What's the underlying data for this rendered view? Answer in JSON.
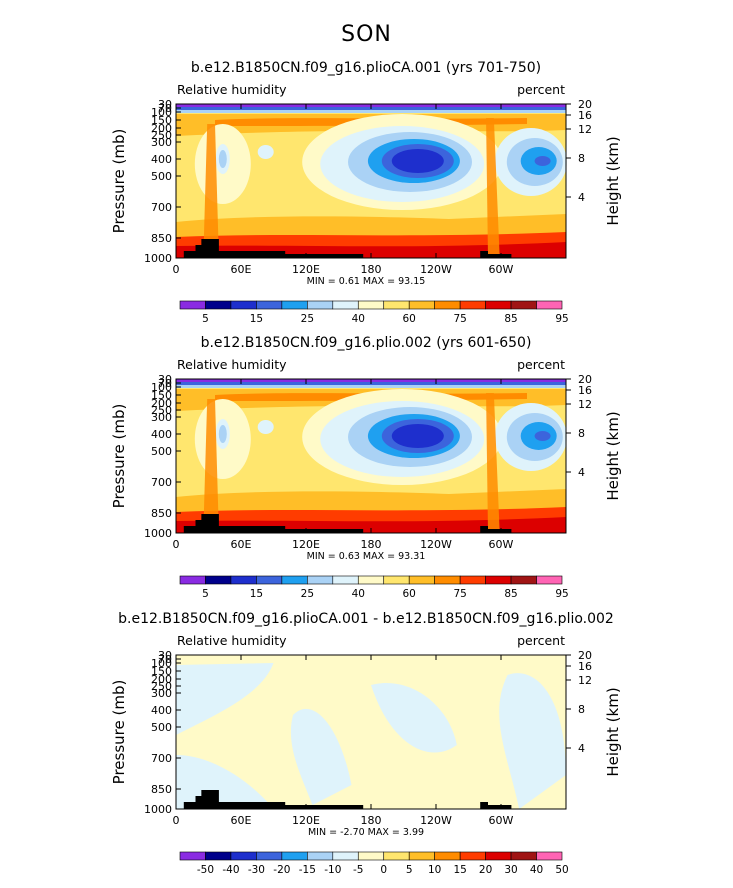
{
  "title": "SON",
  "colors": {
    "abs": [
      "#8a2be2",
      "#00008b",
      "#1e2fcd",
      "#3c64dc",
      "#1fa0f0",
      "#aad2f5",
      "#dff3fb",
      "#fffac8",
      "#ffe66e",
      "#ffbe28",
      "#ff8c00",
      "#ff3c00",
      "#dc0000",
      "#a01414",
      "#ff64b4"
    ],
    "diff": [
      "#8a2be2",
      "#00008b",
      "#1e2fcd",
      "#3c64dc",
      "#1fa0f0",
      "#aad2f5",
      "#dff3fb",
      "#fffac8",
      "#ffe66e",
      "#ffbe28",
      "#ff8c00",
      "#ff3c00",
      "#dc0000",
      "#a01414",
      "#ff64b4"
    ]
  },
  "panels": [
    {
      "title": "b.e12.B1850CN.f09_g16.plioCA.001 (yrs 701-750)",
      "variable": "Relative humidity",
      "units": "percent",
      "stats": "MIN =    0.61   MAX =    93.15",
      "colorbar_labels": [
        "5",
        "15",
        "25",
        "40",
        "60",
        "75",
        "85",
        "95"
      ]
    },
    {
      "title": "b.e12.B1850CN.f09_g16.plio.002 (yrs 601-650)",
      "variable": "Relative humidity",
      "units": "percent",
      "stats": "MIN =    0.63   MAX =    93.31",
      "colorbar_labels": [
        "5",
        "15",
        "25",
        "40",
        "60",
        "75",
        "85",
        "95"
      ]
    },
    {
      "title": "b.e12.B1850CN.f09_g16.plioCA.001 - b.e12.B1850CN.f09_g16.plio.002",
      "variable": "Relative humidity",
      "units": "percent",
      "stats": "MIN =   -2.70   MAX =     3.99",
      "colorbar_labels": [
        "-50",
        "-40",
        "-30",
        "-20",
        "-15",
        "-10",
        "-5",
        "0",
        "5",
        "10",
        "15",
        "20",
        "30",
        "40",
        "50"
      ]
    }
  ],
  "axes": {
    "xlabels": [
      "0",
      "60E",
      "120E",
      "180",
      "120W",
      "60W"
    ],
    "ylabels": [
      "30",
      "70",
      "100",
      "150",
      "200",
      "250",
      "300",
      "400",
      "500",
      "700",
      "850",
      "1000"
    ],
    "ylabel_left": "Pressure (mb)",
    "ylabel_right": "Height (km)",
    "height_labels": [
      "20",
      "16",
      "12",
      "8",
      "4"
    ]
  },
  "chart_data": [
    {
      "type": "heatmap",
      "title": "b.e12.B1850CN.f09_g16.plioCA.001 (yrs 701-750)",
      "xlabel": "",
      "ylabel": "Pressure (mb)",
      "ylabel_right": "Height (km)",
      "x_ticks": [
        "0",
        "60E",
        "120E",
        "180",
        "120W",
        "60W"
      ],
      "y_ticks": [
        30,
        70,
        100,
        150,
        200,
        250,
        300,
        400,
        500,
        700,
        850,
        1000
      ],
      "contour_levels": [
        5,
        10,
        15,
        20,
        25,
        30,
        40,
        50,
        60,
        70,
        75,
        80,
        85,
        90,
        95
      ],
      "min": 0.61,
      "max": 93.15
    },
    {
      "type": "heatmap",
      "title": "b.e12.B1850CN.f09_g16.plio.002 (yrs 601-650)",
      "xlabel": "",
      "ylabel": "Pressure (mb)",
      "ylabel_right": "Height (km)",
      "x_ticks": [
        "0",
        "60E",
        "120E",
        "180",
        "120W",
        "60W"
      ],
      "y_ticks": [
        30,
        70,
        100,
        150,
        200,
        250,
        300,
        400,
        500,
        700,
        850,
        1000
      ],
      "contour_levels": [
        5,
        10,
        15,
        20,
        25,
        30,
        40,
        50,
        60,
        70,
        75,
        80,
        85,
        90,
        95
      ],
      "min": 0.63,
      "max": 93.31
    },
    {
      "type": "heatmap",
      "title": "b.e12.B1850CN.f09_g16.plioCA.001 - b.e12.B1850CN.f09_g16.plio.002",
      "xlabel": "",
      "ylabel": "Pressure (mb)",
      "ylabel_right": "Height (km)",
      "x_ticks": [
        "0",
        "60E",
        "120E",
        "180",
        "120W",
        "60W"
      ],
      "y_ticks": [
        30,
        70,
        100,
        150,
        200,
        250,
        300,
        400,
        500,
        700,
        850,
        1000
      ],
      "contour_levels": [
        -50,
        -40,
        -30,
        -20,
        -15,
        -10,
        -5,
        0,
        5,
        10,
        15,
        20,
        30,
        40,
        50
      ],
      "min": -2.7,
      "max": 3.99
    }
  ]
}
